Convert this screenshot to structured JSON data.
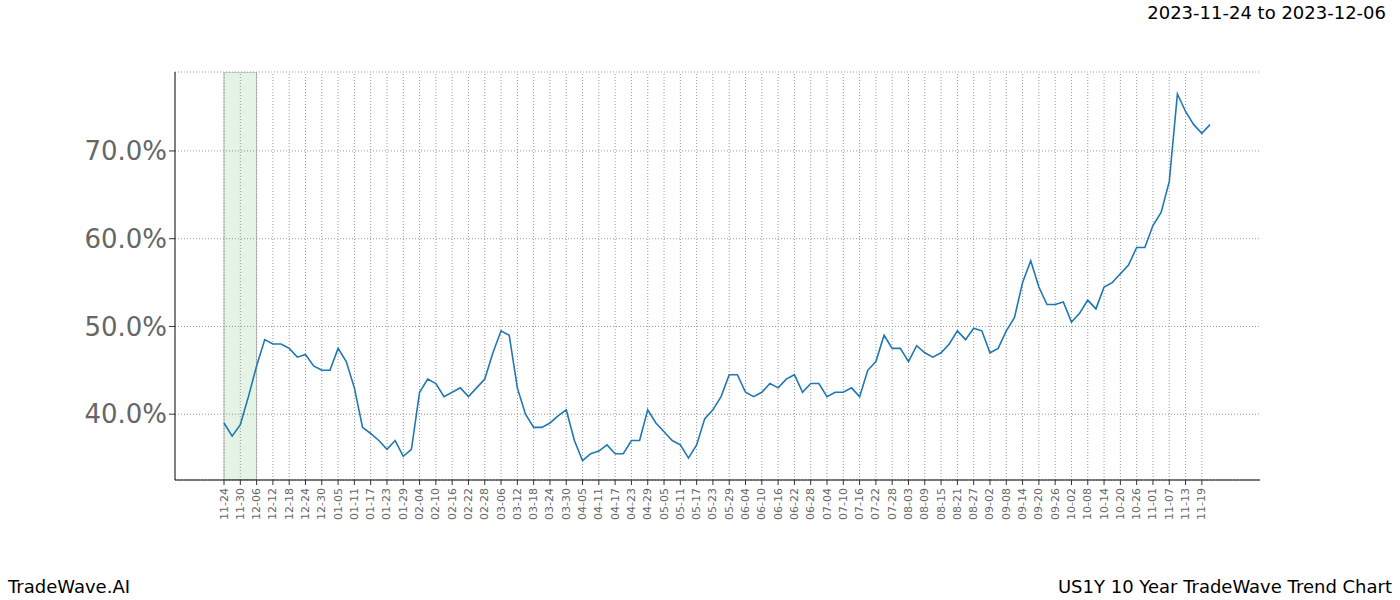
{
  "chart_data": {
    "type": "line",
    "title": "2023-11-24 to 2023-12-06",
    "brand": "TradeWave.AI",
    "caption": "US1Y 10 Year TradeWave Trend Chart",
    "categories": [
      "11-24",
      null,
      "11-30",
      null,
      "12-06",
      null,
      "12-12",
      null,
      "12-18",
      null,
      "12-24",
      null,
      "12-30",
      null,
      "01-05",
      null,
      "01-11",
      null,
      "01-17",
      null,
      "01-23",
      null,
      "01-29",
      null,
      "02-04",
      null,
      "02-10",
      null,
      "02-16",
      null,
      "02-22",
      null,
      "02-28",
      null,
      "03-06",
      null,
      "03-12",
      null,
      "03-18",
      null,
      "03-24",
      null,
      "03-30",
      null,
      "04-05",
      null,
      "04-11",
      null,
      "04-17",
      null,
      "04-23",
      null,
      "04-29",
      null,
      "05-05",
      null,
      "05-11",
      null,
      "05-17",
      null,
      "05-23",
      null,
      "05-29",
      null,
      "06-04",
      null,
      "06-10",
      null,
      "06-16",
      null,
      "06-22",
      null,
      "06-28",
      null,
      "07-04",
      null,
      "07-10",
      null,
      "07-16",
      null,
      "07-22",
      null,
      "07-28",
      null,
      "08-03",
      null,
      "08-09",
      null,
      "08-15",
      null,
      "08-21",
      null,
      "08-27",
      null,
      "09-02",
      null,
      "09-08",
      null,
      "09-14",
      null,
      "09-20",
      null,
      "09-26",
      null,
      "10-02",
      null,
      "10-08",
      null,
      "10-14",
      null,
      "10-20",
      null,
      "10-26",
      null,
      "11-01",
      null,
      "11-07",
      null,
      "11-13",
      null,
      "11-19",
      null
    ],
    "values": [
      39,
      37.5,
      38.8,
      42,
      45.5,
      48.5,
      48,
      48,
      47.5,
      46.5,
      46.8,
      45.5,
      45,
      45,
      47.5,
      46,
      43,
      38.5,
      37.8,
      37,
      36,
      37,
      35.2,
      36,
      42.5,
      44,
      43.5,
      42,
      42.5,
      43,
      42,
      43,
      44,
      47,
      49.5,
      49,
      43,
      40,
      38.5,
      38.5,
      39,
      39.8,
      40.5,
      37,
      34.7,
      35.5,
      35.8,
      36.5,
      35.5,
      35.5,
      37,
      37,
      40.5,
      39,
      38,
      37,
      36.5,
      35,
      36.5,
      39.5,
      40.5,
      42,
      44.5,
      44.5,
      42.5,
      42,
      42.5,
      43.5,
      43,
      44,
      44.5,
      42.5,
      43.5,
      43.5,
      42,
      42.5,
      42.5,
      43,
      42,
      45,
      46,
      49,
      47.5,
      47.5,
      46,
      47.8,
      47,
      46.5,
      47,
      48,
      49.5,
      48.5,
      49.8,
      49.5,
      47,
      47.5,
      49.5,
      51,
      55,
      57.5,
      54.5,
      52.5,
      52.5,
      52.8,
      50.5,
      51.5,
      53,
      52,
      54.5,
      55,
      56,
      57,
      59,
      59,
      61.5,
      63,
      66.5,
      76.5,
      74.5,
      73,
      72,
      73
    ],
    "color": "#1f77b4",
    "shaded_range": [
      "11-24",
      "12-06"
    ],
    "ylim": [
      32.5,
      79
    ],
    "yticks": [
      {
        "value": 40,
        "label": "40.0%"
      },
      {
        "value": 50,
        "label": "50.0%"
      },
      {
        "value": 60,
        "label": "60.0%"
      },
      {
        "value": 70,
        "label": "70.0%"
      }
    ],
    "grid": true
  }
}
